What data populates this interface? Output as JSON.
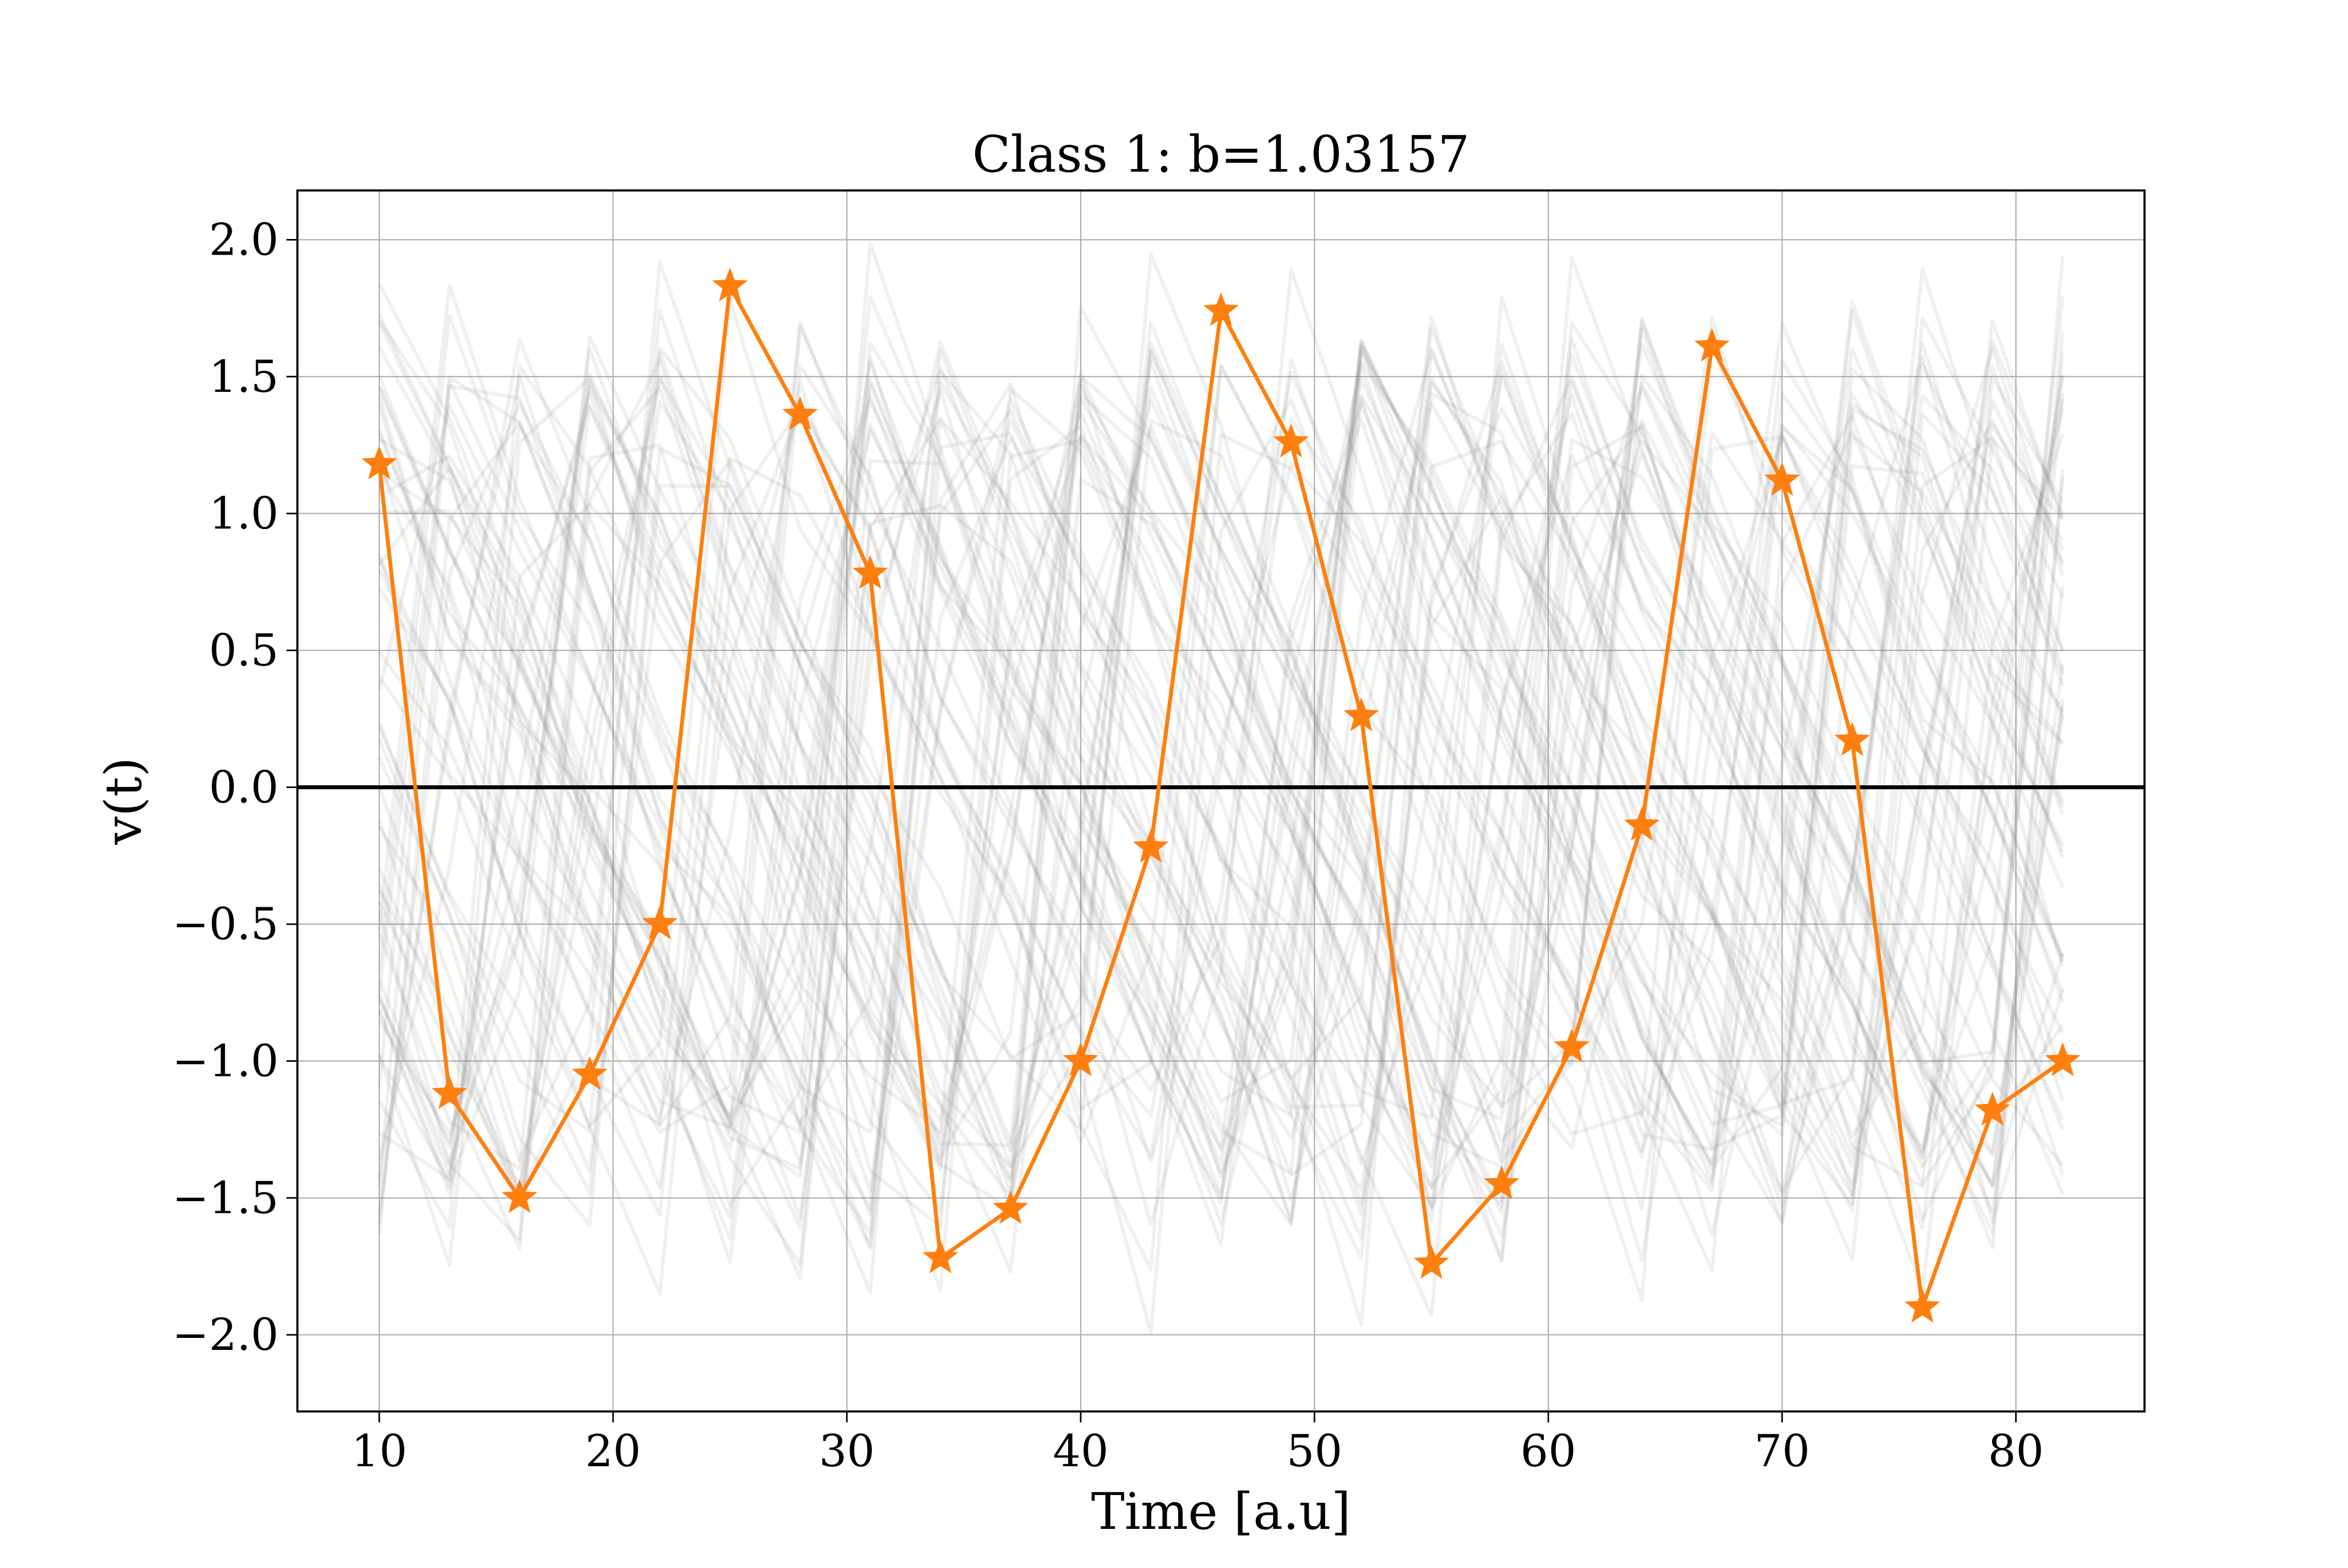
{
  "chart_data": {
    "type": "line",
    "title": "Class 1: b=1.03157",
    "xlabel": "Time [a.u]",
    "ylabel": "v(t)",
    "xlim": [
      6.5,
      85.5
    ],
    "ylim": [
      -2.28,
      2.18
    ],
    "x_ticks": [
      10,
      20,
      30,
      40,
      50,
      60,
      70,
      80
    ],
    "y_ticks": [
      2.0,
      1.5,
      1.0,
      0.5,
      0.0,
      -0.5,
      -1.0,
      -1.5,
      -2.0
    ],
    "x_tick_labels": [
      "10",
      "20",
      "30",
      "40",
      "50",
      "60",
      "70",
      "80"
    ],
    "y_tick_labels": [
      "2.0",
      "1.5",
      "1.0",
      "0.5",
      "0.0",
      "−0.5",
      "−1.0",
      "−1.5",
      "−2.0"
    ],
    "grid": true,
    "reference_line": {
      "y": 0.0,
      "color": "#000000"
    },
    "highlight_series": {
      "marker": "star",
      "color": "#ff7f0e",
      "x": [
        10,
        13,
        16,
        19,
        22,
        25,
        28,
        31,
        34,
        37,
        40,
        43,
        46,
        49,
        52,
        55,
        58,
        61,
        64,
        67,
        70,
        73,
        76,
        79,
        82
      ],
      "y": [
        1.18,
        -1.12,
        -1.5,
        -1.05,
        -0.5,
        1.83,
        1.36,
        0.78,
        -1.72,
        -1.54,
        -1.0,
        -0.22,
        1.74,
        1.26,
        0.26,
        -1.74,
        -1.45,
        -0.95,
        -0.14,
        1.61,
        1.12,
        0.17,
        -1.9,
        -1.18,
        -1.0
      ]
    },
    "background_series": {
      "color": "#808080",
      "count": 60,
      "shape": "sawtooth",
      "period": 21,
      "amplitude_range": [
        1.5,
        1.9
      ],
      "x_range": [
        10,
        82
      ],
      "x_step": 3
    }
  }
}
